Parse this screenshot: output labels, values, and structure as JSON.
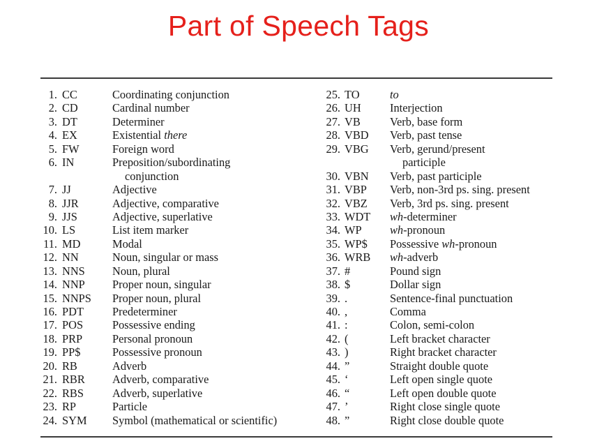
{
  "title": "Part of Speech Tags",
  "accent_color": "#e5201b",
  "left_column": [
    {
      "num": "1.",
      "tag": "CC",
      "desc": "Coordinating conjunction"
    },
    {
      "num": "2.",
      "tag": "CD",
      "desc": "Cardinal number"
    },
    {
      "num": "3.",
      "tag": "DT",
      "desc": "Determiner"
    },
    {
      "num": "4.",
      "tag": "EX",
      "desc": "Existential ",
      "desc_italic": "there"
    },
    {
      "num": "5.",
      "tag": "FW",
      "desc": "Foreign word"
    },
    {
      "num": "6.",
      "tag": "IN",
      "desc": "Preposition/subordinating",
      "desc_cont": "conjunction"
    },
    {
      "num": "7.",
      "tag": "JJ",
      "desc": "Adjective"
    },
    {
      "num": "8.",
      "tag": "JJR",
      "desc": "Adjective, comparative"
    },
    {
      "num": "9.",
      "tag": "JJS",
      "desc": "Adjective, superlative"
    },
    {
      "num": "10.",
      "tag": "LS",
      "desc": "List item marker"
    },
    {
      "num": "11.",
      "tag": "MD",
      "desc": "Modal"
    },
    {
      "num": "12.",
      "tag": "NN",
      "desc": "Noun, singular or mass"
    },
    {
      "num": "13.",
      "tag": "NNS",
      "desc": "Noun, plural"
    },
    {
      "num": "14.",
      "tag": "NNP",
      "desc": "Proper noun, singular"
    },
    {
      "num": "15.",
      "tag": "NNPS",
      "desc": "Proper noun, plural"
    },
    {
      "num": "16.",
      "tag": "PDT",
      "desc": "Predeterminer"
    },
    {
      "num": "17.",
      "tag": "POS",
      "desc": "Possessive ending"
    },
    {
      "num": "18.",
      "tag": "PRP",
      "desc": "Personal pronoun"
    },
    {
      "num": "19.",
      "tag": "PP$",
      "desc": "Possessive pronoun"
    },
    {
      "num": "20.",
      "tag": "RB",
      "desc": "Adverb"
    },
    {
      "num": "21.",
      "tag": "RBR",
      "desc": "Adverb, comparative"
    },
    {
      "num": "22.",
      "tag": "RBS",
      "desc": "Adverb, superlative"
    },
    {
      "num": "23.",
      "tag": "RP",
      "desc": "Particle"
    },
    {
      "num": "24.",
      "tag": "SYM",
      "desc": "Symbol (mathematical or scientific)"
    }
  ],
  "right_column": [
    {
      "num": "25.",
      "tag": "TO",
      "desc": "",
      "desc_italic": "to"
    },
    {
      "num": "26.",
      "tag": "UH",
      "desc": "Interjection"
    },
    {
      "num": "27.",
      "tag": "VB",
      "desc": "Verb, base form"
    },
    {
      "num": "28.",
      "tag": "VBD",
      "desc": "Verb, past tense"
    },
    {
      "num": "29.",
      "tag": "VBG",
      "desc": "Verb, gerund/present",
      "desc_cont": "participle"
    },
    {
      "num": "30.",
      "tag": "VBN",
      "desc": "Verb, past participle"
    },
    {
      "num": "31.",
      "tag": "VBP",
      "desc": "Verb, non-3rd ps. sing. present"
    },
    {
      "num": "32.",
      "tag": "VBZ",
      "desc": "Verb, 3rd ps. sing. present"
    },
    {
      "num": "33.",
      "tag": "WDT",
      "desc_italic": "wh",
      "desc": "-determiner",
      "italic_first": true
    },
    {
      "num": "34.",
      "tag": "WP",
      "desc_italic": "wh",
      "desc": "-pronoun",
      "italic_first": true
    },
    {
      "num": "35.",
      "tag": "WP$",
      "desc": "Possessive ",
      "desc_italic": "wh",
      "desc_after": "-pronoun"
    },
    {
      "num": "36.",
      "tag": "WRB",
      "desc_italic": "wh",
      "desc": "-adverb",
      "italic_first": true
    },
    {
      "num": "37.",
      "tag": "#",
      "desc": "Pound sign"
    },
    {
      "num": "38.",
      "tag": "$",
      "desc": "Dollar sign"
    },
    {
      "num": "39.",
      "tag": ".",
      "desc": "Sentence-final punctuation"
    },
    {
      "num": "40.",
      "tag": ",",
      "desc": "Comma"
    },
    {
      "num": "41.",
      "tag": ":",
      "desc": "Colon, semi-colon"
    },
    {
      "num": "42.",
      "tag": "(",
      "desc": "Left bracket character"
    },
    {
      "num": "43.",
      "tag": ")",
      "desc": "Right bracket character"
    },
    {
      "num": "44.",
      "tag": "”",
      "desc": "Straight double quote"
    },
    {
      "num": "45.",
      "tag": "‘",
      "desc": "Left open single quote"
    },
    {
      "num": "46.",
      "tag": "“",
      "desc": "Left open double quote"
    },
    {
      "num": "47.",
      "tag": "’",
      "desc": "Right close single quote"
    },
    {
      "num": "48.",
      "tag": "”",
      "desc": "Right close double quote"
    }
  ]
}
